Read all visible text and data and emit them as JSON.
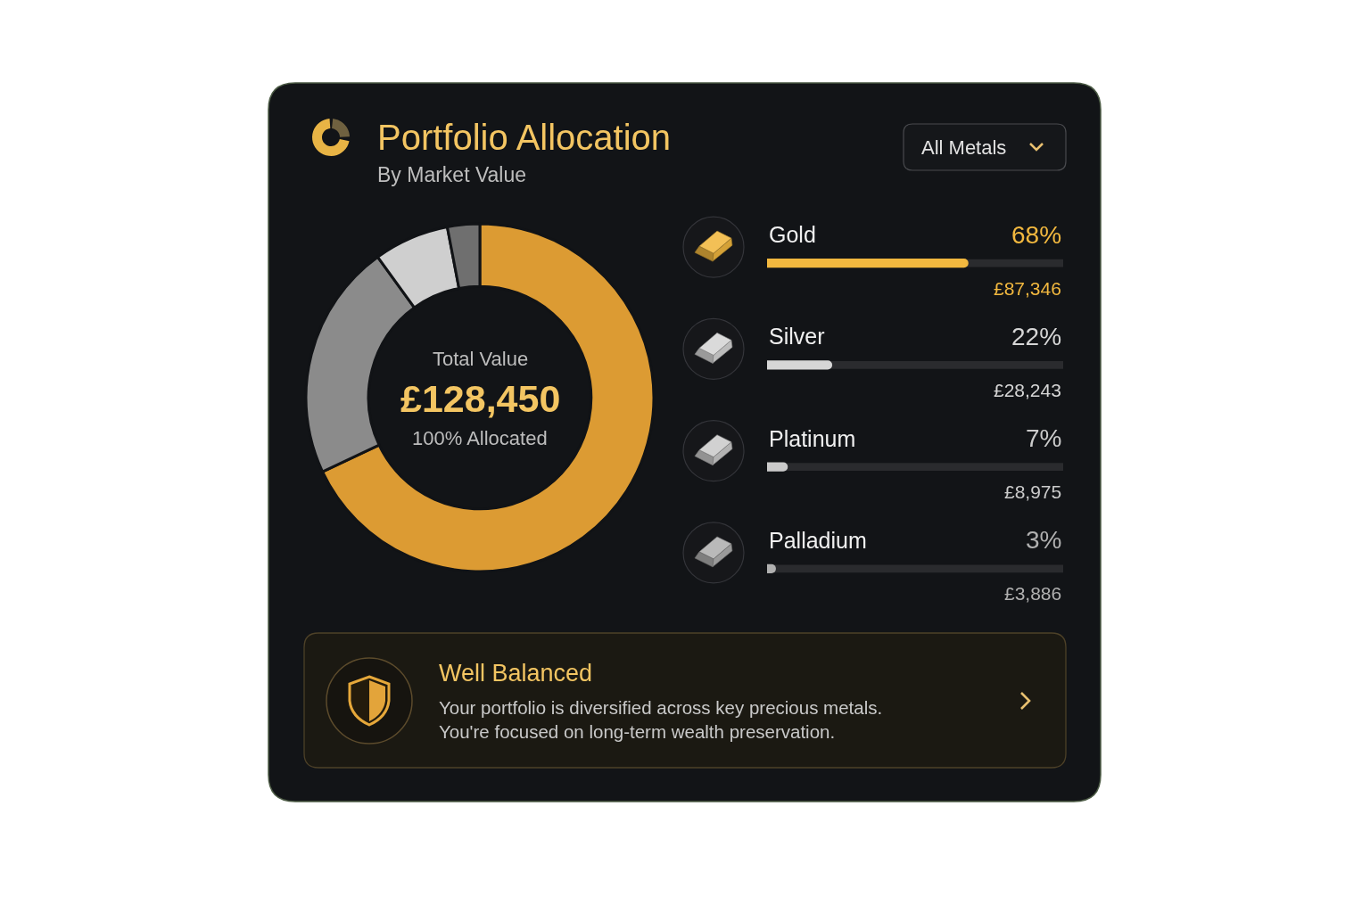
{
  "chart_data": [
    {
      "type": "donut",
      "title": "Portfolio Allocation",
      "subtitle": "By Market Value",
      "categories": [
        null,
        null,
        null,
        null
      ],
      "values": [
        68,
        22,
        7,
        3
      ],
      "colors": [
        "#dc9b33",
        "#8b8b8b",
        "#cfcfcf",
        "#6f6f6f"
      ],
      "annotations": [
        "Total Value",
        "£128,450",
        "100% Allocated"
      ]
    },
    {
      "type": "bar",
      "orientation": "horizontal",
      "categories": [
        "Gold",
        "Silver",
        "Platinum",
        "Palladium"
      ],
      "values": [
        68,
        22,
        7,
        3
      ],
      "colors": [
        "#f2b83f",
        "#d6d6d6",
        "#cbcbcb",
        "#b0b0b0"
      ],
      "xlim": [
        0,
        100
      ],
      "value_labels": [
        "68%",
        "22%",
        "7%",
        "3%"
      ],
      "tick_labels": "y",
      "annotations": [
        "All Metals",
        "£87,346",
        "£28,243",
        "£8,975",
        "£3,886"
      ]
    },
    {
      "type": "other",
      "title": "Well Balanced",
      "annotations": [
        "Your portfolio is diversified across key precious metals.",
        "You're focused on long-term wealth preservation."
      ]
    }
  ]
}
